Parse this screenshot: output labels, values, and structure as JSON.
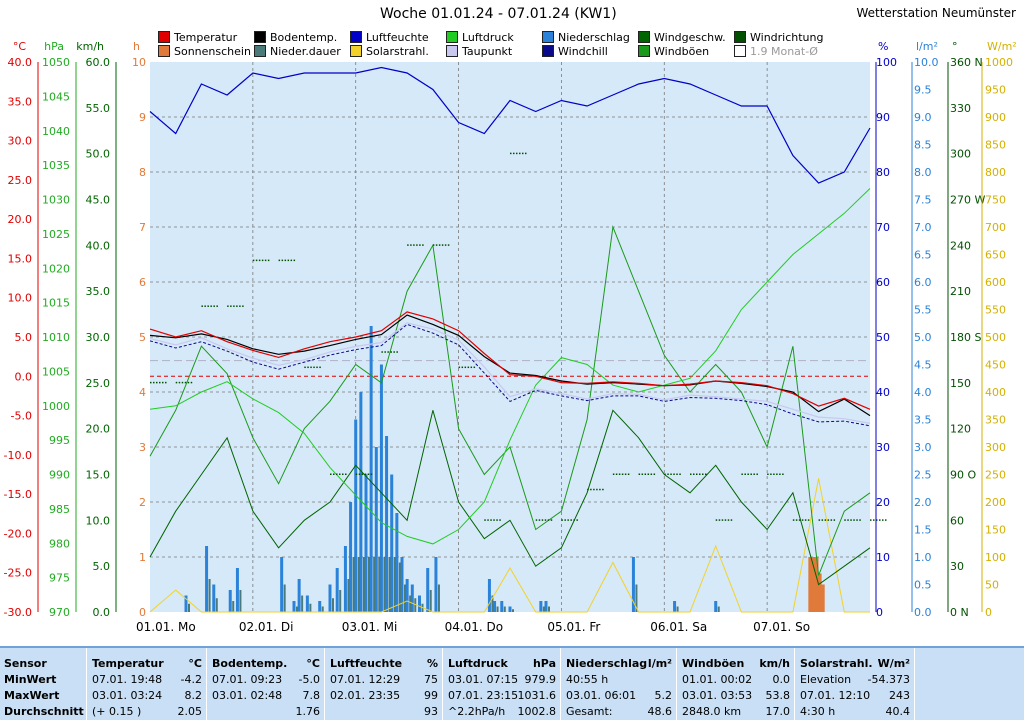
{
  "title": "Woche 01.01.24 - 07.01.24 (KW1)",
  "station": "Wetterstation Neumünster",
  "legend": [
    {
      "label": "Temperatur",
      "color": "#e00000"
    },
    {
      "label": "Bodentemp.",
      "color": "#000000"
    },
    {
      "label": "Luftfeuchte",
      "color": "#0000c8"
    },
    {
      "label": "Luftdruck",
      "color": "#22cc22"
    },
    {
      "label": "Niederschlag",
      "color": "#2b82d9"
    },
    {
      "label": "Windgeschw.",
      "color": "#006400"
    },
    {
      "label": "Windrichtung",
      "color": "#005000"
    },
    {
      "label": "Sonnenschein",
      "color": "#e07a3a"
    },
    {
      "label": "Nieder.dauer",
      "color": "#4a7a7a"
    },
    {
      "label": "Solarstrahl.",
      "color": "#f2d22a"
    },
    {
      "label": "Taupunkt",
      "color": "#c8c8f0"
    },
    {
      "label": "Windchill",
      "color": "#0a0a8c"
    },
    {
      "label": "Windböen",
      "color": "#1a9a1a"
    },
    {
      "label": "1.9 Monat-Ø",
      "color": "#ffffff"
    }
  ],
  "axis_units": {
    "temp": "°C",
    "hpa": "hPa",
    "kmh": "km/h",
    "h": "h",
    "pct": "%",
    "lm2": "l/m²",
    "deg": "°",
    "wm2": "W/m²"
  },
  "axes": {
    "temp": [
      "40.0",
      "35.0",
      "30.0",
      "25.0",
      "20.0",
      "15.0",
      "10.0",
      "5.0",
      "0.0",
      "-5.0",
      "-10.0",
      "-15.0",
      "-20.0",
      "-25.0",
      "-30.0"
    ],
    "hpa": [
      "1050",
      "1045",
      "1040",
      "1035",
      "1030",
      "1025",
      "1020",
      "1015",
      "1010",
      "1005",
      "1000",
      "995",
      "990",
      "985",
      "980",
      "975",
      "970"
    ],
    "kmh": [
      "60.0",
      "55.0",
      "50.0",
      "45.0",
      "40.0",
      "35.0",
      "30.0",
      "25.0",
      "20.0",
      "15.0",
      "10.0",
      "5.0",
      "0.0"
    ],
    "h": [
      "10",
      "9",
      "8",
      "7",
      "6",
      "5",
      "4",
      "3",
      "2",
      "1",
      "0"
    ],
    "pct": [
      "100",
      "90",
      "80",
      "70",
      "60",
      "50",
      "40",
      "30",
      "20",
      "10",
      "0"
    ],
    "lm2": [
      "10.0",
      "9.5",
      "9.0",
      "8.5",
      "8.0",
      "7.5",
      "7.0",
      "6.5",
      "6.0",
      "5.5",
      "5.0",
      "4.5",
      "4.0",
      "3.5",
      "3.0",
      "2.5",
      "2.0",
      "1.5",
      "1.0",
      "0.5",
      "0.0"
    ],
    "deg": [
      "360 N",
      "330",
      "300",
      "270 W",
      "240",
      "210",
      "180 S",
      "150",
      "120",
      "90 O",
      "60",
      "30",
      "0 N"
    ],
    "wm2": [
      "1000",
      "950",
      "900",
      "850",
      "800",
      "750",
      "700",
      "650",
      "600",
      "550",
      "500",
      "450",
      "400",
      "350",
      "300",
      "250",
      "200",
      "150",
      "100",
      "50",
      "0"
    ]
  },
  "days": [
    "01.01. Mo",
    "02.01. Di",
    "03.01. Mi",
    "04.01. Do",
    "05.01. Fr",
    "06.01. Sa",
    "07.01. So"
  ],
  "chart_data": {
    "type": "line",
    "title": "Woche 01.01.24 - 07.01.24 (KW1)",
    "x": [
      0,
      0.25,
      0.5,
      0.75,
      1,
      1.25,
      1.5,
      1.75,
      2,
      2.25,
      2.5,
      2.75,
      3,
      3.25,
      3.5,
      3.75,
      4,
      4.25,
      4.5,
      4.75,
      5,
      5.25,
      5.5,
      5.75,
      6,
      6.25,
      6.5,
      6.75,
      7
    ],
    "xlabel": "",
    "series": [
      {
        "name": "Temperatur",
        "unit": "°C",
        "values": [
          6.0,
          5.0,
          5.8,
          4.4,
          3.3,
          2.4,
          3.5,
          4.4,
          5.0,
          5.8,
          8.2,
          7.3,
          5.8,
          2.9,
          0.2,
          0.0,
          -0.8,
          -0.9,
          -0.7,
          -0.9,
          -1.2,
          -1.0,
          -0.6,
          -0.8,
          -1.2,
          -2.2,
          -3.8,
          -2.8,
          -4.2
        ]
      },
      {
        "name": "Bodentemp.",
        "unit": "°C",
        "values": [
          5.2,
          4.9,
          5.4,
          4.7,
          3.5,
          2.8,
          3.2,
          3.9,
          4.7,
          5.3,
          7.8,
          6.6,
          5.2,
          2.5,
          0.4,
          0.1,
          -0.6,
          -1.0,
          -0.8,
          -1.0,
          -1.2,
          -1.1,
          -0.6,
          -0.9,
          -1.3,
          -2.0,
          -4.5,
          -2.9,
          -5.0
        ]
      },
      {
        "name": "Taupunkt",
        "unit": "°C",
        "values": [
          4.8,
          4.0,
          4.9,
          3.5,
          2.3,
          1.4,
          2.1,
          3.1,
          3.8,
          4.3,
          6.8,
          6.0,
          4.6,
          1.2,
          -2.6,
          -1.6,
          -2.2,
          -2.9,
          -2.2,
          -2.3,
          -3.0,
          -2.4,
          -2.6,
          -2.9,
          -3.2,
          -4.2,
          -5.2,
          -5.4,
          -6.0
        ]
      },
      {
        "name": "Windchill",
        "unit": "°C",
        "values": [
          4.5,
          3.6,
          4.4,
          3.2,
          1.8,
          0.9,
          1.8,
          2.7,
          3.4,
          3.9,
          6.6,
          5.5,
          4.0,
          0.4,
          -3.2,
          -1.8,
          -2.5,
          -3.1,
          -2.5,
          -2.5,
          -3.2,
          -2.7,
          -2.8,
          -3.1,
          -3.6,
          -4.8,
          -5.8,
          -5.7,
          -6.3
        ]
      },
      {
        "name": "Luftfeuchte",
        "unit": "%",
        "values": [
          91,
          87,
          96,
          94,
          98,
          97,
          98,
          98,
          98,
          99,
          98,
          95,
          89,
          87,
          93,
          91,
          93,
          92,
          94,
          96,
          97,
          96,
          94,
          92,
          92,
          83,
          78,
          80,
          88
        ]
      },
      {
        "name": "Luftdruck",
        "unit": "hPa",
        "values": [
          999.5,
          1000.0,
          1002.0,
          1003.5,
          1001.0,
          999.0,
          996.0,
          991.0,
          987.0,
          983.0,
          981.0,
          979.9,
          982.0,
          986.0,
          995.0,
          1003.0,
          1007.0,
          1006.0,
          1003.0,
          1002.0,
          1003.0,
          1004.0,
          1008.0,
          1014.0,
          1018.0,
          1022.0,
          1025.0,
          1028.0,
          1031.6
        ]
      },
      {
        "name": "Windgeschw.",
        "unit": "km/h",
        "values": [
          6,
          11,
          15,
          19,
          11,
          7,
          10,
          12,
          16,
          13,
          10,
          22,
          12,
          8,
          10,
          5,
          7,
          13,
          22,
          19,
          15,
          13,
          16,
          12,
          9,
          13,
          3,
          5,
          7
        ]
      },
      {
        "name": "Windböen",
        "unit": "km/h",
        "values": [
          17,
          22,
          29,
          26,
          19,
          14,
          20,
          23,
          27,
          25,
          35,
          40,
          20,
          15,
          18,
          9,
          11,
          21,
          42,
          35,
          28,
          24,
          27,
          24,
          18,
          29,
          4,
          11,
          13
        ]
      },
      {
        "name": "Solarstrahl.",
        "unit": "W/m²",
        "values": [
          0,
          40,
          0,
          0,
          0,
          0,
          0,
          0,
          0,
          0,
          20,
          0,
          0,
          0,
          80,
          0,
          0,
          0,
          90,
          0,
          0,
          0,
          120,
          0,
          0,
          0,
          243,
          0,
          0
        ]
      },
      {
        "name": "Windrichtung",
        "unit": "°",
        "values": [
          150,
          150,
          200,
          200,
          230,
          230,
          160,
          90,
          90,
          170,
          240,
          240,
          160,
          60,
          300,
          60,
          60,
          80,
          90,
          90,
          90,
          90,
          60,
          90,
          90,
          60,
          60,
          60,
          60
        ]
      }
    ],
    "precip_bars": [
      0.3,
      1.2,
      0.5,
      0.4,
      0.8,
      1.0,
      0.2,
      0.6,
      0.3,
      0.2,
      0.5,
      0.8,
      1.2,
      2.0,
      3.5,
      4.0,
      2.5,
      5.2,
      3.0,
      4.5,
      3.2,
      2.5,
      1.8,
      1.0,
      0.6,
      0.5,
      0.3,
      0.8,
      1.0,
      0.6,
      0.2,
      0.2,
      0.1,
      0.2,
      0.2,
      1.0,
      0.2,
      0.2
    ],
    "precip_x": [
      0.35,
      0.55,
      0.62,
      0.78,
      0.85,
      1.28,
      1.4,
      1.45,
      1.53,
      1.65,
      1.75,
      1.82,
      1.9,
      1.95,
      2.0,
      2.05,
      2.1,
      2.15,
      2.2,
      2.25,
      2.3,
      2.35,
      2.4,
      2.45,
      2.5,
      2.55,
      2.62,
      2.7,
      2.78,
      3.3,
      3.35,
      3.42,
      3.5,
      3.8,
      3.85,
      4.7,
      5.1,
      5.5
    ],
    "sunshine_bars": [
      {
        "x": 6.42,
        "v": 1.0
      },
      {
        "x": 6.45,
        "v": 1.0
      },
      {
        "x": 6.48,
        "v": 1.0
      },
      {
        "x": 6.51,
        "v": 0.7
      },
      {
        "x": 6.54,
        "v": 0.5
      }
    ],
    "ylim_temp": [
      -30,
      40
    ],
    "ylim_hpa": [
      970,
      1050
    ],
    "ylim_kmh": [
      0,
      60
    ],
    "ylim_pct": [
      0,
      100
    ],
    "grid": true
  },
  "stats": {
    "labels": {
      "sensor": "Sensor",
      "min": "MinWert",
      "max": "MaxWert",
      "avg": "Durchschnitt"
    },
    "columns": [
      {
        "name": "Temperatur",
        "unit": "°C",
        "min_t": "07.01.  19:48",
        "min_v": "-4.2",
        "max_t": "03.01.  03:24",
        "max_v": "8.2",
        "avg_t": "(+ 0.15 )",
        "avg_v": "2.05"
      },
      {
        "name": "Bodentemp.",
        "unit": "°C",
        "min_t": "07.01.  09:23",
        "min_v": "-5.0",
        "max_t": "03.01.  02:48",
        "max_v": "7.8",
        "avg_t": "",
        "avg_v": "1.76"
      },
      {
        "name": "Luftfeuchte",
        "unit": "%",
        "min_t": "07.01.  12:29",
        "min_v": "75",
        "max_t": "02.01.  23:35",
        "max_v": "99",
        "avg_t": "",
        "avg_v": "93"
      },
      {
        "name": "Luftdruck",
        "unit": "hPa",
        "min_t": "03.01.  07:15",
        "min_v": "979.9",
        "max_t": "07.01.  23:15",
        "max_v": "1031.6",
        "avg_t": "^2.2hPa/h",
        "avg_v": "1002.8"
      },
      {
        "name": "Niederschlag",
        "unit": "l/m²",
        "min_t": "40:55 h",
        "min_v": "",
        "max_t": "03.01.  06:01",
        "max_v": "5.2",
        "avg_t": "Gesamt:",
        "avg_v": "48.6"
      },
      {
        "name": "Windböen",
        "unit": "km/h",
        "min_t": "01.01.  00:02",
        "min_v": "0.0",
        "max_t": "03.01.  03:53",
        "max_v": "53.8",
        "avg_t": "2848.0 km",
        "avg_v": "17.0"
      },
      {
        "name": "Solarstrahl.",
        "unit": "W/m²",
        "min_t": "Elevation",
        "min_v": "-54.373",
        "max_t": "07.01.  12:10",
        "max_v": "243",
        "avg_t": "4:30 h",
        "avg_v": "40.4"
      }
    ]
  }
}
